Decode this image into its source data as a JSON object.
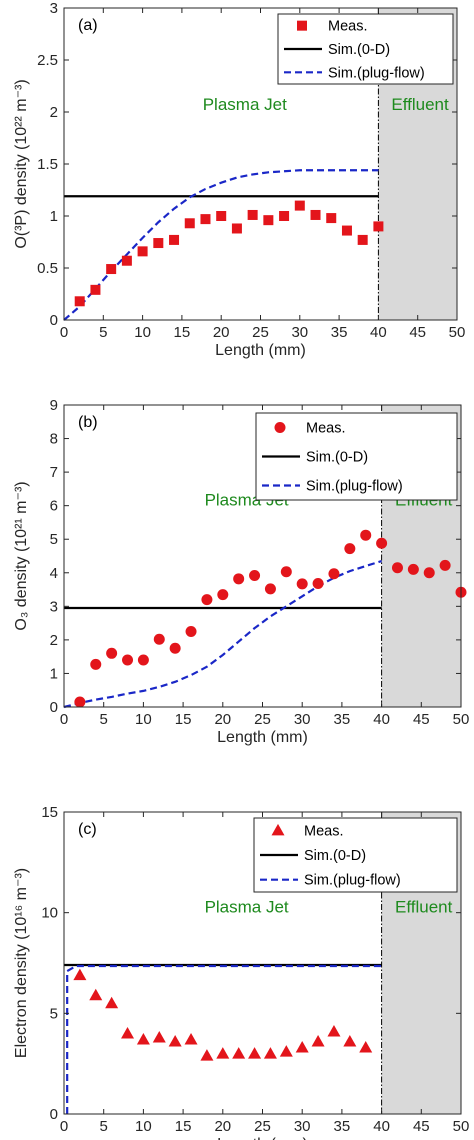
{
  "colors": {
    "measurement": "#e3151b",
    "sim_0d": "#000000",
    "sim_plug_flow": "#1a27c7",
    "annotation": "#1e8a1e",
    "effluent_region": "#d9d9d9",
    "axis": "#262626"
  },
  "chart_data": [
    {
      "panel_label": "(a)",
      "type": "scatter",
      "xlabel": "Length (mm)",
      "ylabel": "O(³P) density (10²² m⁻³)",
      "xlim": [
        0,
        50
      ],
      "ylim": [
        0,
        3
      ],
      "xticks": [
        "0",
        "5",
        "10",
        "15",
        "20",
        "25",
        "30",
        "35",
        "40",
        "45",
        "50"
      ],
      "yticks": [
        "0",
        "0.5",
        "1",
        "1.5",
        "2",
        "2.5",
        "3"
      ],
      "effluent_from": 40,
      "annotations": [
        {
          "text": "Plasma Jet",
          "x": 23,
          "y": 2.02
        },
        {
          "text": "Effluent",
          "x": 45.3,
          "y": 2.02
        }
      ],
      "legend_position": "top-right",
      "series": [
        {
          "name": "Meas.",
          "style": "square",
          "x": [
            2,
            4,
            6,
            8,
            10,
            12,
            14,
            16,
            18,
            20,
            22,
            24,
            26,
            28,
            30,
            32,
            34,
            36,
            38,
            40
          ],
          "y": [
            0.18,
            0.29,
            0.49,
            0.57,
            0.66,
            0.74,
            0.77,
            0.93,
            0.97,
            1.0,
            0.88,
            1.01,
            0.96,
            1.0,
            1.1,
            1.01,
            0.98,
            0.86,
            0.77,
            0.9
          ]
        },
        {
          "name": "Sim.(0-D)",
          "style": "solid",
          "x": [
            0,
            40
          ],
          "y": [
            1.19,
            1.19
          ]
        },
        {
          "name": "Sim.(plug-flow)",
          "style": "dashed",
          "x": [
            0,
            2,
            4,
            6,
            8,
            10,
            12,
            14,
            16,
            18,
            20,
            22,
            24,
            26,
            28,
            30,
            32,
            34,
            36,
            38,
            40
          ],
          "y": [
            0,
            0.13,
            0.3,
            0.47,
            0.63,
            0.79,
            0.94,
            1.07,
            1.18,
            1.26,
            1.32,
            1.37,
            1.4,
            1.42,
            1.43,
            1.44,
            1.44,
            1.44,
            1.44,
            1.44,
            1.44
          ]
        }
      ]
    },
    {
      "panel_label": "(b)",
      "type": "scatter",
      "xlabel": "Length (mm)",
      "ylabel": "O₃ density (10²¹ m⁻³)",
      "xlim": [
        0,
        50
      ],
      "ylim": [
        0,
        9
      ],
      "xticks": [
        "0",
        "5",
        "10",
        "15",
        "20",
        "25",
        "30",
        "35",
        "40",
        "45",
        "50"
      ],
      "yticks": [
        "0",
        "1",
        "2",
        "3",
        "4",
        "5",
        "6",
        "7",
        "8",
        "9"
      ],
      "effluent_from": 40,
      "annotations": [
        {
          "text": "Plasma Jet",
          "x": 23,
          "y": 6.0
        },
        {
          "text": "Effluent",
          "x": 45.3,
          "y": 6.0
        }
      ],
      "legend_position": "top-right",
      "series": [
        {
          "name": "Meas.",
          "style": "circle",
          "x": [
            2,
            4,
            6,
            8,
            10,
            12,
            14,
            16,
            18,
            20,
            22,
            24,
            26,
            28,
            30,
            32,
            34,
            36,
            38,
            40,
            42,
            44,
            46,
            48,
            50
          ],
          "y": [
            0.15,
            1.27,
            1.6,
            1.4,
            1.4,
            2.02,
            1.75,
            2.25,
            3.2,
            3.35,
            3.82,
            3.92,
            3.52,
            4.03,
            3.67,
            3.68,
            3.97,
            4.72,
            5.12,
            4.88,
            4.15,
            4.1,
            4.0,
            4.22,
            3.42
          ]
        },
        {
          "name": "Sim.(0-D)",
          "style": "solid",
          "x": [
            0,
            40
          ],
          "y": [
            2.95,
            2.95
          ]
        },
        {
          "name": "Sim.(plug-flow)",
          "style": "dashed",
          "x": [
            0,
            2,
            4,
            6,
            8,
            10,
            12,
            14,
            16,
            18,
            20,
            22,
            24,
            26,
            28,
            30,
            32,
            34,
            36,
            38,
            40
          ],
          "y": [
            0,
            0.12,
            0.22,
            0.3,
            0.4,
            0.48,
            0.6,
            0.75,
            0.95,
            1.2,
            1.55,
            1.95,
            2.35,
            2.7,
            3.0,
            3.3,
            3.6,
            3.85,
            4.05,
            4.2,
            4.35
          ]
        }
      ]
    },
    {
      "panel_label": "(c)",
      "type": "scatter",
      "xlabel": "Length (mm)",
      "ylabel": "Electron density (10¹⁶ m⁻³)",
      "xlim": [
        0,
        50
      ],
      "ylim": [
        0,
        15
      ],
      "xticks": [
        "0",
        "5",
        "10",
        "15",
        "20",
        "25",
        "30",
        "35",
        "40",
        "45",
        "50"
      ],
      "yticks": [
        "0",
        "5",
        "10",
        "15"
      ],
      "effluent_from": 40,
      "annotations": [
        {
          "text": "Plasma Jet",
          "x": 23,
          "y": 10.0
        },
        {
          "text": "Effluent",
          "x": 45.3,
          "y": 10.0
        }
      ],
      "legend_position": "top-right",
      "series": [
        {
          "name": "Meas.",
          "style": "triangle",
          "x": [
            2,
            4,
            6,
            8,
            10,
            12,
            14,
            16,
            18,
            20,
            22,
            24,
            26,
            28,
            30,
            32,
            34,
            36,
            38
          ],
          "y": [
            6.9,
            5.9,
            5.5,
            4.0,
            3.7,
            3.8,
            3.6,
            3.7,
            2.9,
            3.0,
            3.0,
            3.0,
            3.0,
            3.1,
            3.3,
            3.6,
            4.1,
            3.6,
            3.3
          ]
        },
        {
          "name": "Sim.(0-D)",
          "style": "solid",
          "x": [
            0,
            40
          ],
          "y": [
            7.4,
            7.4
          ]
        },
        {
          "name": "Sim.(plug-flow)",
          "style": "dashed",
          "x": [
            0.4,
            0.4,
            1.5,
            40
          ],
          "y": [
            0,
            7.1,
            7.35,
            7.35
          ]
        }
      ]
    }
  ]
}
